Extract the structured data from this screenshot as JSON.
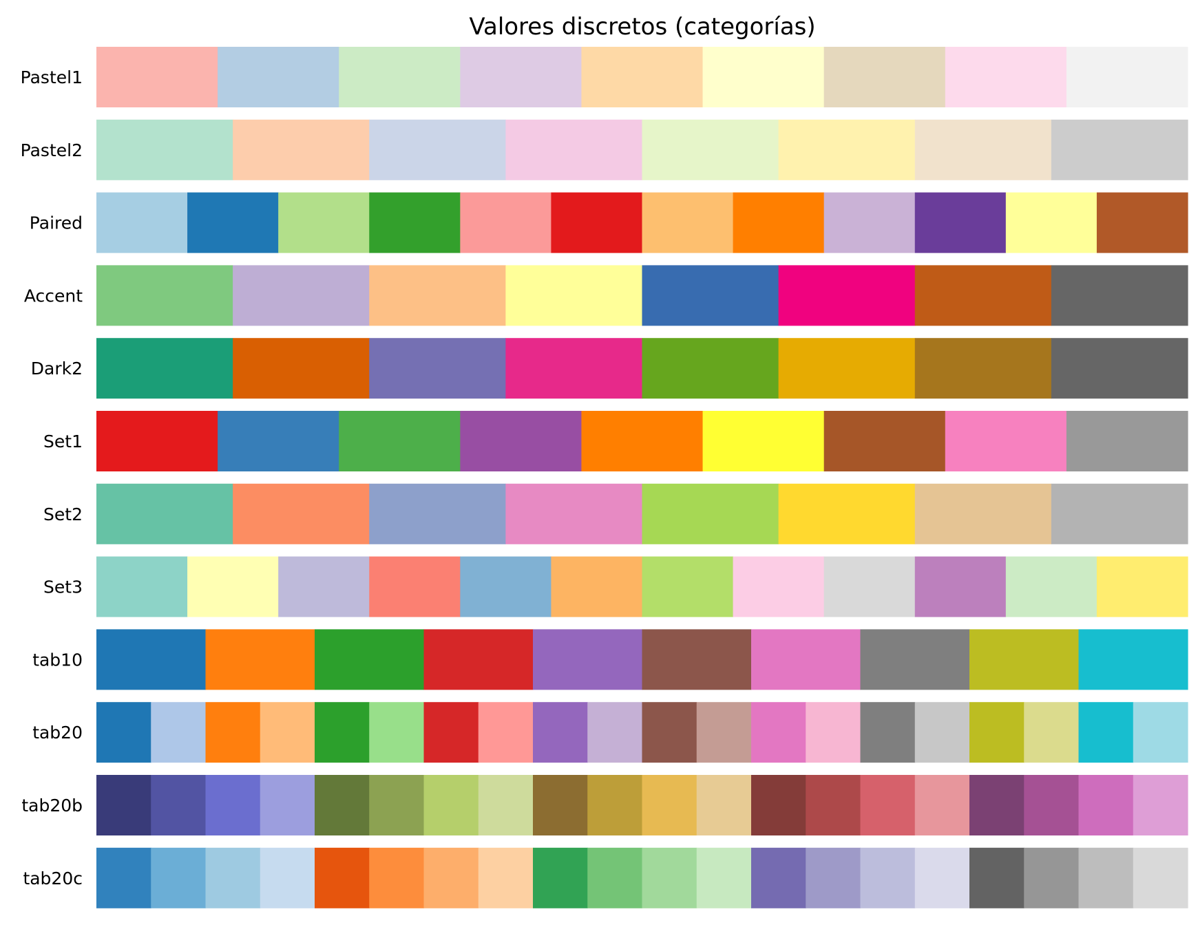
{
  "chart_data": {
    "type": "heatmap",
    "title": "Valores discretos (categorías)",
    "xlabel": "",
    "ylabel": "",
    "grid": false,
    "legend": "none",
    "rows": [
      {
        "name": "Pastel1",
        "colors": [
          "#fbb4ae",
          "#b3cde3",
          "#ccebc5",
          "#decbe4",
          "#fed9a6",
          "#ffffcc",
          "#e5d8bd",
          "#fddaec",
          "#f2f2f2"
        ]
      },
      {
        "name": "Pastel2",
        "colors": [
          "#b3e2cd",
          "#fdcdac",
          "#cbd5e8",
          "#f4cae4",
          "#e6f5c9",
          "#fff2ae",
          "#f1e2cc",
          "#cccccc"
        ]
      },
      {
        "name": "Paired",
        "colors": [
          "#a6cee3",
          "#1f78b4",
          "#b2df8a",
          "#33a02c",
          "#fb9a99",
          "#e31a1c",
          "#fdbf6f",
          "#ff7f00",
          "#cab2d6",
          "#6a3d9a",
          "#ffff99",
          "#b15928"
        ]
      },
      {
        "name": "Accent",
        "colors": [
          "#7fc97f",
          "#beaed4",
          "#fdc086",
          "#ffff99",
          "#386cb0",
          "#f0027f",
          "#bf5b17",
          "#666666"
        ]
      },
      {
        "name": "Dark2",
        "colors": [
          "#1b9e77",
          "#d95f02",
          "#7570b3",
          "#e7298a",
          "#66a61e",
          "#e6ab02",
          "#a6761d",
          "#666666"
        ]
      },
      {
        "name": "Set1",
        "colors": [
          "#e41a1c",
          "#377eb8",
          "#4daf4a",
          "#984ea3",
          "#ff7f00",
          "#ffff33",
          "#a65628",
          "#f781bf",
          "#999999"
        ]
      },
      {
        "name": "Set2",
        "colors": [
          "#66c2a5",
          "#fc8d62",
          "#8da0cb",
          "#e78ac3",
          "#a6d854",
          "#ffd92f",
          "#e5c494",
          "#b3b3b3"
        ]
      },
      {
        "name": "Set3",
        "colors": [
          "#8dd3c7",
          "#ffffb3",
          "#bebada",
          "#fb8072",
          "#80b1d3",
          "#fdb462",
          "#b3de69",
          "#fccde5",
          "#d9d9d9",
          "#bc80bd",
          "#ccebc5",
          "#ffed6f"
        ]
      },
      {
        "name": "tab10",
        "colors": [
          "#1f77b4",
          "#ff7f0e",
          "#2ca02c",
          "#d62728",
          "#9467bd",
          "#8c564b",
          "#e377c2",
          "#7f7f7f",
          "#bcbd22",
          "#17becf"
        ]
      },
      {
        "name": "tab20",
        "colors": [
          "#1f77b4",
          "#aec7e8",
          "#ff7f0e",
          "#ffbb78",
          "#2ca02c",
          "#98df8a",
          "#d62728",
          "#ff9896",
          "#9467bd",
          "#c5b0d5",
          "#8c564b",
          "#c49c94",
          "#e377c2",
          "#f7b6d2",
          "#7f7f7f",
          "#c7c7c7",
          "#bcbd22",
          "#dbdb8d",
          "#17becf",
          "#9edae5"
        ]
      },
      {
        "name": "tab20b",
        "colors": [
          "#393b79",
          "#5254a3",
          "#6b6ecf",
          "#9c9ede",
          "#637939",
          "#8ca252",
          "#b5cf6b",
          "#cedb9c",
          "#8c6d31",
          "#bd9e39",
          "#e7ba52",
          "#e7cb94",
          "#843c39",
          "#ad494a",
          "#d6616b",
          "#e7969c",
          "#7b4173",
          "#a55194",
          "#ce6dbd",
          "#de9ed6"
        ]
      },
      {
        "name": "tab20c",
        "colors": [
          "#3182bd",
          "#6baed6",
          "#9ecae1",
          "#c6dbef",
          "#e6550d",
          "#fd8d3c",
          "#fdae6b",
          "#fdd0a2",
          "#31a354",
          "#74c476",
          "#a1d99b",
          "#c7e9c0",
          "#756bb1",
          "#9e9ac8",
          "#bcbddc",
          "#dadaeb",
          "#636363",
          "#969696",
          "#bdbdbd",
          "#d9d9d9"
        ]
      }
    ]
  }
}
